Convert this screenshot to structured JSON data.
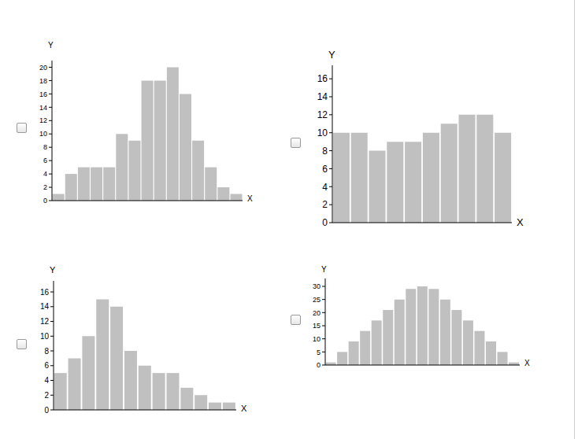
{
  "chart_data": [
    {
      "type": "bar",
      "x_label": "X",
      "y_label": "Y",
      "color": "#c0c0c0",
      "tick_labels": "y",
      "categories": [
        null,
        null,
        null,
        null,
        null,
        null,
        null,
        null,
        null,
        null,
        null,
        null,
        null,
        null,
        null
      ],
      "values": [
        1,
        4,
        5,
        5,
        5,
        10,
        9,
        18,
        18,
        20,
        16,
        9,
        5,
        2,
        1
      ],
      "ylim": [
        0,
        21
      ],
      "yticks": [
        0,
        2,
        4,
        6,
        8,
        10,
        12,
        14,
        16,
        18,
        20
      ]
    },
    {
      "type": "bar",
      "x_label": "X",
      "y_label": "Y",
      "color": "#c0c0c0",
      "tick_labels": "y",
      "categories": [
        null,
        null,
        null,
        null,
        null,
        null,
        null,
        null,
        null,
        null
      ],
      "values": [
        10,
        10,
        8,
        9,
        9,
        10,
        11,
        12,
        12,
        10
      ],
      "ylim": [
        0,
        17.5
      ],
      "yticks": [
        0,
        2,
        4,
        6,
        8,
        10,
        12,
        14,
        16
      ]
    },
    {
      "type": "bar",
      "x_label": "X",
      "y_label": "Y",
      "color": "#c0c0c0",
      "tick_labels": "y",
      "categories": [
        null,
        null,
        null,
        null,
        null,
        null,
        null,
        null,
        null,
        null,
        null,
        null,
        null
      ],
      "values": [
        5,
        7,
        10,
        15,
        14,
        8,
        6,
        5,
        5,
        3,
        2,
        1,
        1
      ],
      "ylim": [
        0,
        17.5
      ],
      "yticks": [
        0,
        2,
        4,
        6,
        8,
        10,
        12,
        14,
        16
      ]
    },
    {
      "type": "bar",
      "x_label": "X",
      "y_label": "Y",
      "color": "#c0c0c0",
      "tick_labels": "y",
      "categories": [
        null,
        null,
        null,
        null,
        null,
        null,
        null,
        null,
        null,
        null,
        null,
        null,
        null,
        null,
        null,
        null,
        null
      ],
      "values": [
        1,
        5,
        9,
        13,
        17,
        21,
        25,
        29,
        30,
        29,
        25,
        21,
        17,
        13,
        9,
        5,
        1
      ],
      "ylim": [
        0,
        33
      ],
      "yticks": [
        0,
        5,
        10,
        15,
        20,
        25,
        30
      ]
    }
  ]
}
